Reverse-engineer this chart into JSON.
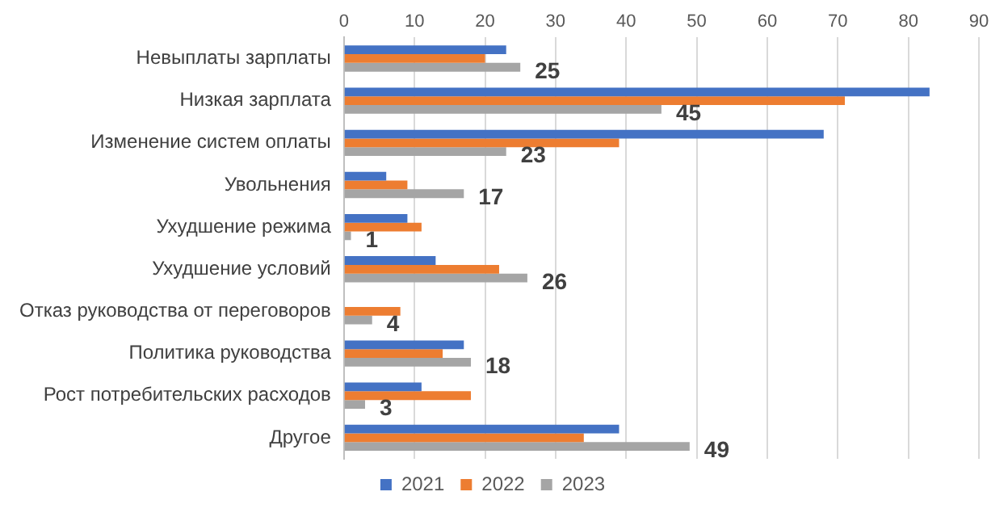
{
  "chart_data": {
    "type": "bar",
    "orientation": "horizontal",
    "categories": [
      "Невыплаты зарплаты",
      "Низкая зарплата",
      "Изменение систем оплаты",
      "Увольнения",
      "Ухудшение режима",
      "Ухудшение условий",
      "Отказ руководства от переговоров",
      "Политика руководства",
      "Рост потребительских расходов",
      "Другое"
    ],
    "series": [
      {
        "name": "2021",
        "color": "#4472c4",
        "values": [
          23,
          83,
          68,
          6,
          9,
          13,
          0,
          17,
          11,
          39
        ]
      },
      {
        "name": "2022",
        "color": "#ed7d31",
        "values": [
          20,
          71,
          39,
          9,
          11,
          22,
          8,
          14,
          18,
          34
        ]
      },
      {
        "name": "2023",
        "color": "#a5a5a5",
        "values": [
          25,
          45,
          23,
          17,
          1,
          26,
          4,
          18,
          3,
          49
        ],
        "value_labels": [
          "25",
          "45",
          "23",
          "17",
          "1",
          "26",
          "4",
          "18",
          "3",
          "49"
        ]
      }
    ],
    "xlim": [
      0,
      90
    ],
    "xticks": [
      0,
      10,
      20,
      30,
      40,
      50,
      60,
      70,
      80,
      90
    ],
    "grid": "x",
    "legend": "bottom"
  }
}
